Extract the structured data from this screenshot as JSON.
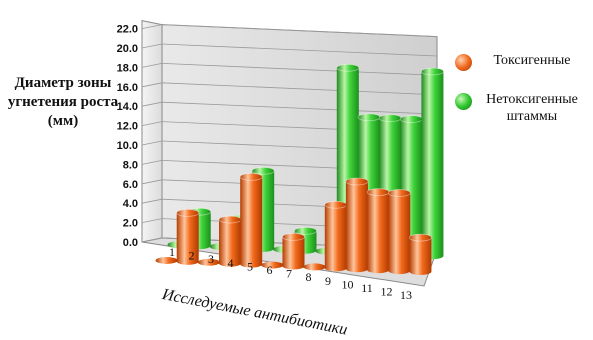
{
  "chart_data": {
    "type": "bar",
    "ylabel": "Диаметр зоны угнетения роста (мм)",
    "xlabel": "Исследуемые антибиотики",
    "categories": [
      "1",
      "2",
      "3",
      "4",
      "5",
      "6",
      "7",
      "8",
      "9",
      "10",
      "11",
      "12",
      "13"
    ],
    "yticks": [
      "0.0",
      "2.0",
      "4.0",
      "6.0",
      "8.0",
      "10.0",
      "12.0",
      "14.0",
      "16.0",
      "18.0",
      "20.0",
      "22.0"
    ],
    "ylim": [
      0,
      22
    ],
    "grid": true,
    "legend_position": "right",
    "series": [
      {
        "name": "Токсигенные",
        "color": "#f06a1e",
        "values": [
          0,
          5,
          0,
          4.5,
          9,
          0,
          3,
          0,
          6.5,
          9,
          8,
          8,
          3.5
        ]
      },
      {
        "name": "Нетоксигенные штаммы",
        "color": "#2fc72d",
        "values": [
          0,
          3.5,
          0,
          3,
          8,
          0,
          2,
          0,
          19,
          14,
          14,
          14,
          19
        ]
      }
    ]
  }
}
